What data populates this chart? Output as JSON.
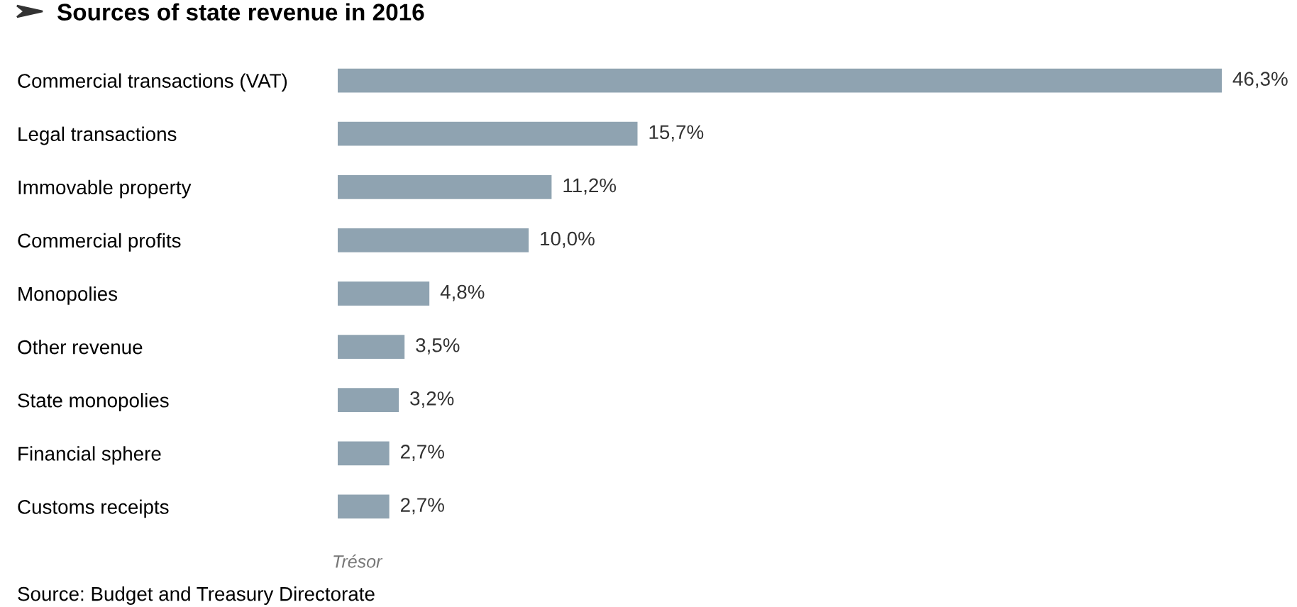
{
  "chart_data": {
    "type": "bar",
    "orientation": "horizontal",
    "title": "Sources of state revenue in 2016",
    "categories": [
      "Commercial transactions (VAT)",
      "Legal transactions",
      "Immovable property",
      "Commercial profits",
      "Monopolies",
      "Other revenue",
      "State monopolies",
      "Financial sphere",
      "Customs receipts"
    ],
    "values": [
      46.3,
      15.7,
      11.2,
      10.0,
      4.8,
      3.5,
      3.2,
      2.7,
      2.7
    ],
    "value_labels": [
      "46,3%",
      "15,7%",
      "11,2%",
      "10,0%",
      "4,8%",
      "3,5%",
      "3,2%",
      "2,7%",
      "2,7%"
    ],
    "color": "#8fa3b1",
    "annotations": [
      "Trésor",
      "Source: Budget and Treasury Directorate"
    ],
    "grid": false,
    "legend": false
  }
}
